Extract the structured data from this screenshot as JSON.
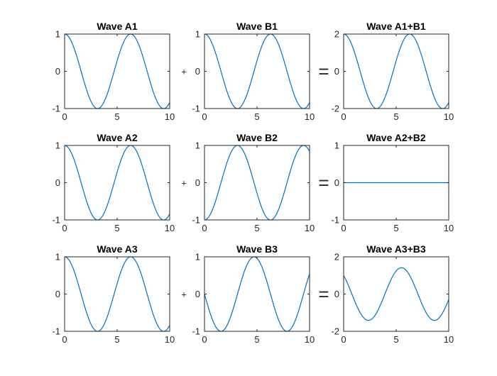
{
  "figure": {
    "plus_symbol": "+",
    "equals_symbol": "="
  },
  "chart_data": [
    {
      "type": "line",
      "title": "Wave A1",
      "xlim": [
        0,
        10
      ],
      "ylim": [
        -1,
        1
      ],
      "xticks": [
        0,
        5,
        10
      ],
      "yticks": [
        -1,
        0,
        1
      ],
      "grid": false,
      "series": [
        {
          "equation": "cos(x)",
          "color": "#0072BD"
        }
      ]
    },
    {
      "type": "line",
      "title": "Wave B1",
      "xlim": [
        0,
        10
      ],
      "ylim": [
        -1,
        1
      ],
      "xticks": [
        0,
        5,
        10
      ],
      "yticks": [
        -1,
        0,
        1
      ],
      "grid": false,
      "series": [
        {
          "equation": "cos(x)",
          "color": "#0072BD"
        }
      ]
    },
    {
      "type": "line",
      "title": "Wave A1+B1",
      "xlim": [
        0,
        10
      ],
      "ylim": [
        -2,
        2
      ],
      "xticks": [
        0,
        5,
        10
      ],
      "yticks": [
        -2,
        0,
        2
      ],
      "grid": false,
      "series": [
        {
          "equation": "2*cos(x)",
          "color": "#0072BD"
        }
      ]
    },
    {
      "type": "line",
      "title": "Wave A2",
      "xlim": [
        0,
        10
      ],
      "ylim": [
        -1,
        1
      ],
      "xticks": [
        0,
        5,
        10
      ],
      "yticks": [
        -1,
        0,
        1
      ],
      "grid": false,
      "series": [
        {
          "equation": "cos(x)",
          "color": "#0072BD"
        }
      ]
    },
    {
      "type": "line",
      "title": "Wave B2",
      "xlim": [
        0,
        10
      ],
      "ylim": [
        -1,
        1
      ],
      "xticks": [
        0,
        5,
        10
      ],
      "yticks": [
        -1,
        0,
        1
      ],
      "grid": false,
      "series": [
        {
          "equation": "-cos(x)",
          "color": "#0072BD"
        }
      ]
    },
    {
      "type": "line",
      "title": "Wave A2+B2",
      "xlim": [
        0,
        10
      ],
      "ylim": [
        -1,
        1
      ],
      "xticks": [
        0,
        5,
        10
      ],
      "yticks": [
        -1,
        0,
        1
      ],
      "grid": false,
      "series": [
        {
          "equation": "0",
          "color": "#0072BD"
        }
      ]
    },
    {
      "type": "line",
      "title": "Wave A3",
      "xlim": [
        0,
        10
      ],
      "ylim": [
        -1,
        1
      ],
      "xticks": [
        0,
        5,
        10
      ],
      "yticks": [
        -1,
        0,
        1
      ],
      "grid": false,
      "series": [
        {
          "equation": "cos(x)",
          "color": "#0072BD"
        }
      ]
    },
    {
      "type": "line",
      "title": "Wave B3",
      "xlim": [
        0,
        10
      ],
      "ylim": [
        -1,
        1
      ],
      "xticks": [
        0,
        5,
        10
      ],
      "yticks": [
        -1,
        0,
        1
      ],
      "grid": false,
      "series": [
        {
          "equation": "-sin(x)",
          "color": "#0072BD"
        }
      ]
    },
    {
      "type": "line",
      "title": "Wave A3+B3",
      "xlim": [
        0,
        10
      ],
      "ylim": [
        -2,
        2
      ],
      "xticks": [
        0,
        5,
        10
      ],
      "yticks": [
        -2,
        0,
        2
      ],
      "grid": false,
      "series": [
        {
          "equation": "cos(x) - sin(x)",
          "color": "#0072BD"
        }
      ]
    }
  ]
}
